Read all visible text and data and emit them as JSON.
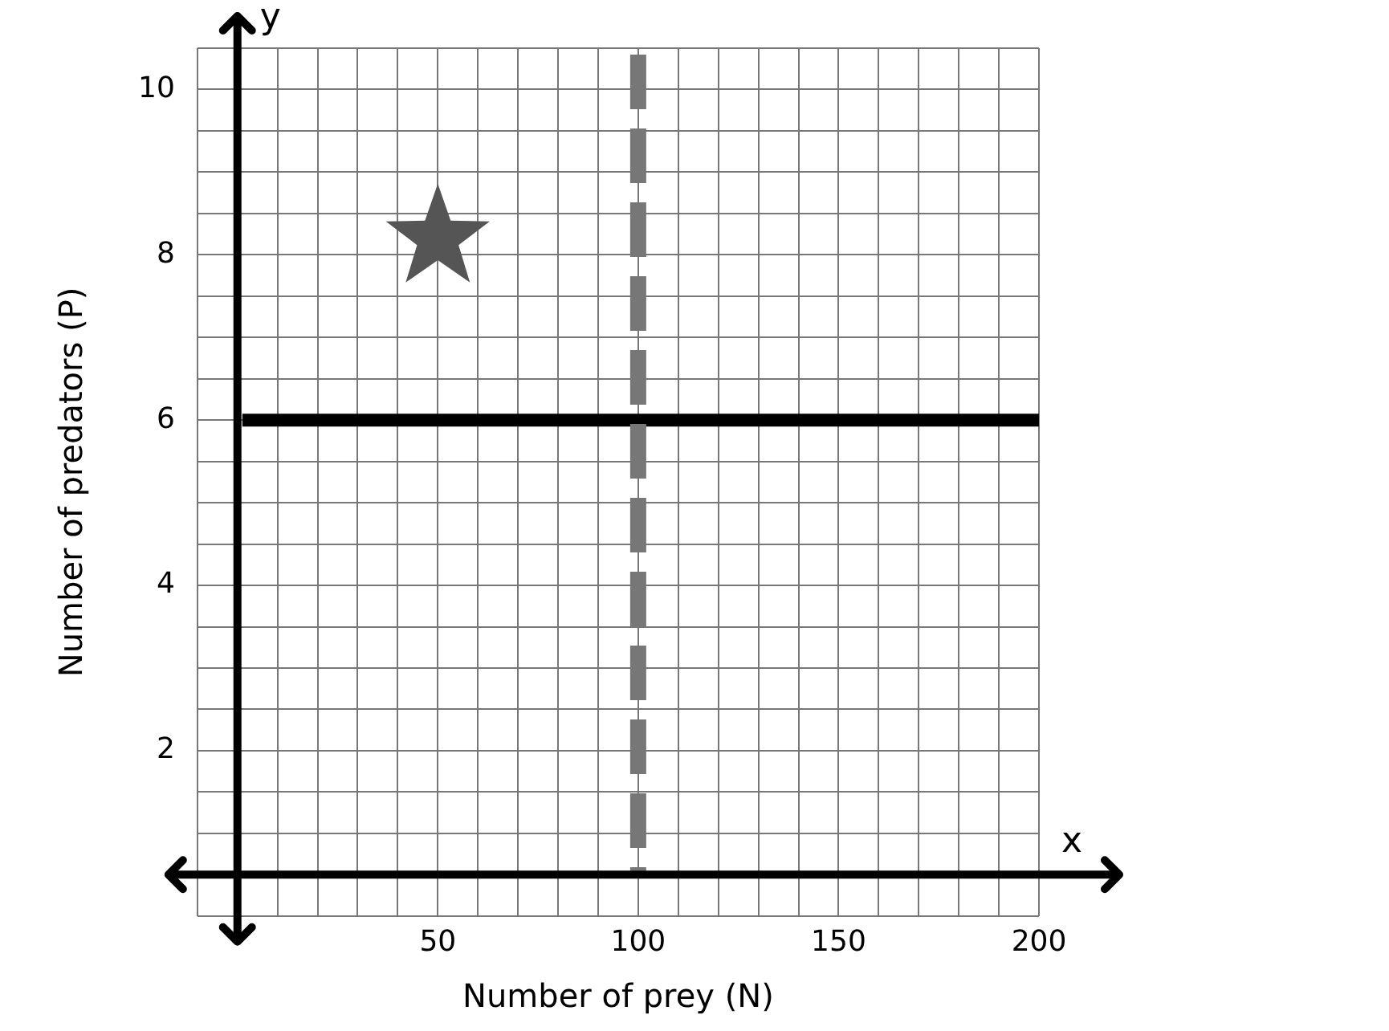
{
  "chart_data": {
    "type": "scatter",
    "xlabel": "Number of prey (N)",
    "ylabel": "Number of predators (P)",
    "annotations": [
      "y",
      "x"
    ],
    "xlim": [
      -10,
      200
    ],
    "xticks": [
      {
        "value": -10,
        "label": null
      },
      {
        "value": 0,
        "label": null
      },
      {
        "value": 10,
        "label": null
      },
      {
        "value": 20,
        "label": null
      },
      {
        "value": 30,
        "label": null
      },
      {
        "value": 40,
        "label": null
      },
      50,
      {
        "value": 60,
        "label": null
      },
      {
        "value": 70,
        "label": null
      },
      {
        "value": 80,
        "label": null
      },
      {
        "value": 90,
        "label": null
      },
      100,
      {
        "value": 110,
        "label": null
      },
      {
        "value": 120,
        "label": null
      },
      {
        "value": 130,
        "label": null
      },
      {
        "value": 140,
        "label": null
      },
      150,
      {
        "value": 160,
        "label": null
      },
      {
        "value": 170,
        "label": null
      },
      {
        "value": 180,
        "label": null
      },
      {
        "value": 190,
        "label": null
      },
      200
    ],
    "ylim": [
      0,
      10.5
    ],
    "yticks": [
      {
        "value": 0,
        "label": null
      },
      {
        "value": 0.5,
        "label": null
      },
      {
        "value": 1,
        "label": null
      },
      {
        "value": 1.5,
        "label": null
      },
      2,
      {
        "value": 2.5,
        "label": null
      },
      {
        "value": 3,
        "label": null
      },
      {
        "value": 3.5,
        "label": null
      },
      4,
      {
        "value": 4.5,
        "label": null
      },
      {
        "value": 5,
        "label": null
      },
      {
        "value": 5.5,
        "label": null
      },
      6,
      {
        "value": 6.5,
        "label": null
      },
      {
        "value": 7,
        "label": null
      },
      {
        "value": 7.5,
        "label": null
      },
      8,
      {
        "value": 8.5,
        "label": null
      },
      {
        "value": 9,
        "label": null
      },
      {
        "value": 9.5,
        "label": null
      },
      10,
      {
        "value": 10.5,
        "label": null
      }
    ],
    "grid": true,
    "marker": "star",
    "series": [
      {
        "color": "#555555",
        "x": [
          50
        ],
        "values": [
          8.2
        ]
      }
    ],
    "ref_lines": [
      {
        "axis": "y",
        "value": 6,
        "color": "#000000",
        "line_style": "solid"
      },
      {
        "axis": "x",
        "value": 100,
        "color": "#777777",
        "line_style": "dashed"
      }
    ]
  }
}
